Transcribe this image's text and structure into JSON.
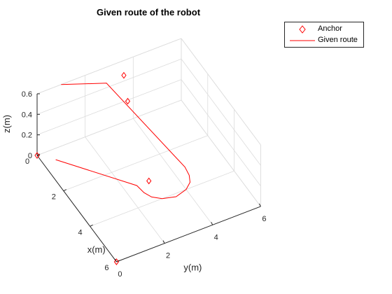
{
  "chart_data": {
    "type": "line",
    "title": "Given route of the robot",
    "xlabel": "x(m)",
    "ylabel": "y(m)",
    "zlabel": "z(m)",
    "xlim": [
      0,
      6
    ],
    "ylim": [
      0,
      6
    ],
    "zlim": [
      0,
      0.6
    ],
    "xticks": [
      0,
      2,
      4,
      6
    ],
    "yticks": [
      0,
      2,
      4,
      6
    ],
    "zticks": [
      0,
      0.2,
      0.4,
      0.6
    ],
    "xtick_labels": [
      "0",
      "2",
      "4",
      "6"
    ],
    "ytick_labels": [
      "0",
      "2",
      "4",
      "6"
    ],
    "ztick_labels": [
      "0",
      "0.2",
      "0.4",
      "0.6"
    ],
    "grid": true,
    "legend_location": "top-right",
    "series": [
      {
        "name": "Anchor",
        "type": "scatter",
        "marker": "diamond",
        "color": "#ff0000",
        "points": [
          {
            "x": 0.0,
            "y": 0.0,
            "z": 0.0
          },
          {
            "x": 6.0,
            "y": 0.0,
            "z": 0.0
          },
          {
            "x": 3.0,
            "y": 3.0,
            "z": 0.0
          },
          {
            "x": 1.4,
            "y": 3.0,
            "z": 0.5
          },
          {
            "x": 0.2,
            "y": 3.5,
            "z": 0.5
          }
        ]
      },
      {
        "name": "Given route",
        "type": "line",
        "color": "#ff0000",
        "points": [
          {
            "x": 0.0,
            "y": 1.0,
            "z": 0.6
          },
          {
            "x": 0.7,
            "y": 2.5,
            "z": 0.6
          },
          {
            "x": 3.0,
            "y": 4.5,
            "z": 0.0
          },
          {
            "x": 3.43,
            "y": 4.44,
            "z": 0.0
          },
          {
            "x": 3.75,
            "y": 4.3,
            "z": 0.0
          },
          {
            "x": 4.0,
            "y": 4.0,
            "z": 0.0
          },
          {
            "x": 4.15,
            "y": 3.5,
            "z": 0.0
          },
          {
            "x": 4.0,
            "y": 3.0,
            "z": 0.0
          },
          {
            "x": 3.75,
            "y": 2.7,
            "z": 0.0
          },
          {
            "x": 3.43,
            "y": 2.56,
            "z": 0.0
          },
          {
            "x": 3.0,
            "y": 2.5,
            "z": 0.0
          },
          {
            "x": 0.5,
            "y": 0.5,
            "z": 0.0
          }
        ]
      }
    ]
  }
}
